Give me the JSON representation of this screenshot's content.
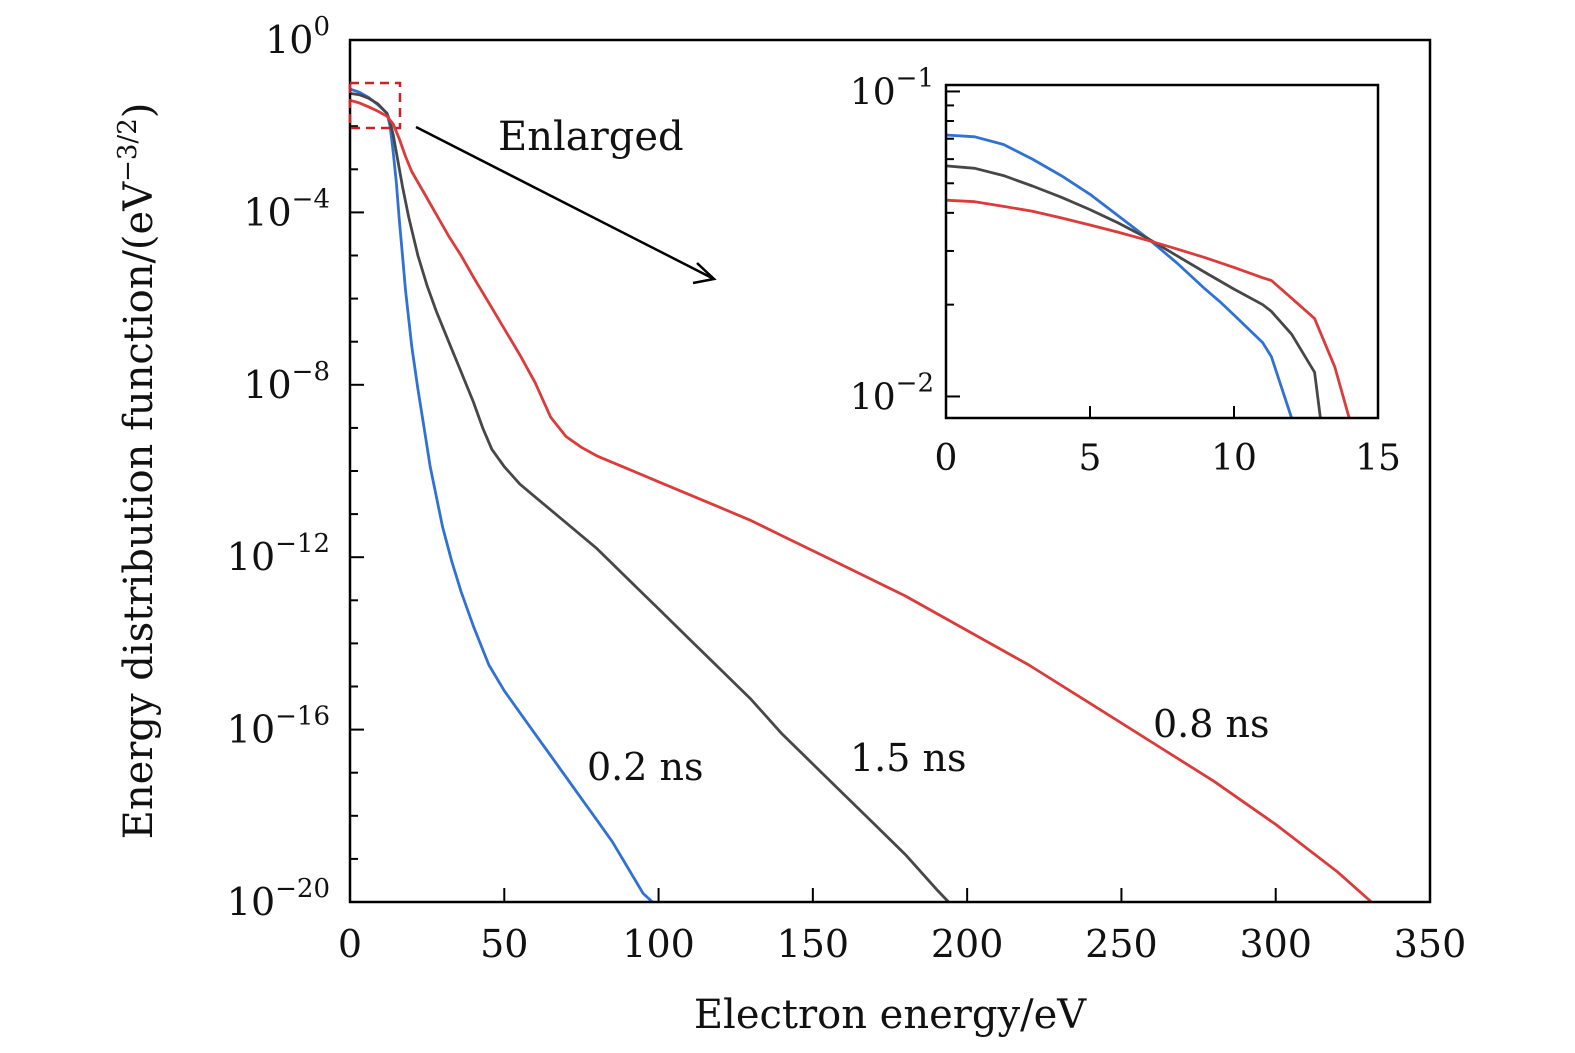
{
  "chart_data": {
    "type": "line",
    "y_scale": "log",
    "xlabel": "Electron energy/eV",
    "ylabel": "Energy distribution function/(eV",
    "ylabel_exponent": "−3/2",
    "ylabel_close": ")",
    "xlim": [
      0,
      350
    ],
    "ylim": [
      1e-20,
      1
    ],
    "x_ticks": [
      0,
      50,
      100,
      150,
      200,
      250,
      300,
      350
    ],
    "y_ticks": [
      {
        "base": "10",
        "exp": "0",
        "value": 1
      },
      {
        "base": "10",
        "exp": "−4",
        "value": 0.0001
      },
      {
        "base": "10",
        "exp": "−8",
        "value": 1e-08
      },
      {
        "base": "10",
        "exp": "−12",
        "value": 1e-12
      },
      {
        "base": "10",
        "exp": "−16",
        "value": 1e-16
      },
      {
        "base": "10",
        "exp": "−20",
        "value": 1e-20
      }
    ],
    "annotation": "Enlarged",
    "colors": {
      "blue": "#2f72d4",
      "gray": "#474747",
      "red": "#dc3b3b",
      "box": "#cc2222"
    },
    "series": [
      {
        "name": "0.2 ns",
        "color": "#2f72d4",
        "x": [
          0,
          3,
          6,
          9,
          12,
          13,
          14,
          15,
          16,
          17,
          18,
          20,
          22,
          24,
          26,
          28,
          30,
          33,
          36,
          40,
          45,
          50,
          55,
          60,
          65,
          70,
          75,
          80,
          85,
          90,
          95,
          98
        ],
        "log10y": [
          -1.14,
          -1.21,
          -1.33,
          -1.5,
          -1.7,
          -2.0,
          -2.6,
          -3.3,
          -4.2,
          -5.0,
          -5.8,
          -7.1,
          -8.1,
          -9.0,
          -9.9,
          -10.6,
          -11.3,
          -12.1,
          -12.8,
          -13.6,
          -14.5,
          -15.1,
          -15.6,
          -16.1,
          -16.6,
          -17.1,
          -17.6,
          -18.1,
          -18.6,
          -19.2,
          -19.8,
          -20.0
        ]
      },
      {
        "name": "1.5 ns",
        "color": "#474747",
        "x": [
          0,
          3,
          6,
          9,
          12,
          13,
          14,
          15,
          17,
          19,
          22,
          25,
          28,
          32,
          36,
          40,
          43,
          46,
          50,
          55,
          60,
          70,
          80,
          90,
          100,
          110,
          120,
          130,
          140,
          150,
          160,
          170,
          180,
          190,
          194
        ],
        "log10y": [
          -1.24,
          -1.27,
          -1.35,
          -1.48,
          -1.7,
          -1.9,
          -2.2,
          -2.6,
          -3.4,
          -4.1,
          -5.0,
          -5.7,
          -6.3,
          -7.0,
          -7.7,
          -8.4,
          -9.0,
          -9.5,
          -9.9,
          -10.3,
          -10.6,
          -11.2,
          -11.8,
          -12.5,
          -13.2,
          -13.9,
          -14.6,
          -15.3,
          -16.1,
          -16.8,
          -17.5,
          -18.2,
          -18.9,
          -19.7,
          -20.0
        ]
      },
      {
        "name": "0.8 ns",
        "color": "#dc3b3b",
        "x": [
          0,
          3,
          6,
          9,
          12,
          14,
          16,
          18,
          20,
          24,
          28,
          32,
          36,
          40,
          45,
          50,
          55,
          60,
          65,
          70,
          75,
          80,
          90,
          100,
          110,
          120,
          130,
          140,
          150,
          160,
          180,
          200,
          220,
          240,
          260,
          280,
          300,
          320,
          331
        ],
        "log10y": [
          -1.4,
          -1.46,
          -1.55,
          -1.65,
          -1.77,
          -1.95,
          -2.3,
          -2.7,
          -3.05,
          -3.55,
          -4.05,
          -4.55,
          -5.0,
          -5.5,
          -6.1,
          -6.7,
          -7.3,
          -7.95,
          -8.75,
          -9.2,
          -9.45,
          -9.65,
          -9.95,
          -10.25,
          -10.55,
          -10.85,
          -11.15,
          -11.5,
          -11.85,
          -12.2,
          -12.9,
          -13.7,
          -14.5,
          -15.4,
          -16.3,
          -17.2,
          -18.2,
          -19.3,
          -20.0
        ]
      }
    ],
    "inset": {
      "xlim": [
        0,
        15
      ],
      "ylim": [
        0.0085,
        0.105
      ],
      "x_ticks": [
        0,
        5,
        10,
        15
      ],
      "y_ticks": [
        {
          "base": "10",
          "exp": "−1",
          "value": 0.1
        },
        {
          "base": "10",
          "exp": "−2",
          "value": 0.01
        }
      ],
      "series": [
        {
          "name": "0.2 ns",
          "color": "#2f72d4",
          "x": [
            0,
            1,
            2,
            3,
            4,
            5,
            6,
            7,
            8,
            9,
            9.5,
            10,
            11,
            11.3,
            12
          ],
          "y": [
            0.072,
            0.071,
            0.067,
            0.06,
            0.053,
            0.046,
            0.039,
            0.033,
            0.0275,
            0.0225,
            0.0205,
            0.0185,
            0.015,
            0.0135,
            0.0085
          ]
        },
        {
          "name": "1.5 ns",
          "color": "#474747",
          "x": [
            0,
            1,
            2,
            3,
            4,
            5,
            6,
            7,
            8,
            9,
            10,
            11,
            11.3,
            12,
            12.8,
            13
          ],
          "y": [
            0.057,
            0.056,
            0.053,
            0.049,
            0.045,
            0.041,
            0.037,
            0.033,
            0.029,
            0.0255,
            0.0225,
            0.02,
            0.019,
            0.016,
            0.012,
            0.0085
          ]
        },
        {
          "name": "0.8 ns",
          "color": "#dc3b3b",
          "x": [
            0,
            1,
            2,
            3,
            4,
            5,
            6,
            7,
            8,
            9,
            10,
            11,
            11.3,
            12,
            12.8,
            13.5,
            14
          ],
          "y": [
            0.044,
            0.0435,
            0.042,
            0.0405,
            0.0385,
            0.0365,
            0.0345,
            0.0325,
            0.0305,
            0.0285,
            0.0265,
            0.0245,
            0.024,
            0.021,
            0.018,
            0.0125,
            0.0085
          ]
        }
      ]
    }
  }
}
